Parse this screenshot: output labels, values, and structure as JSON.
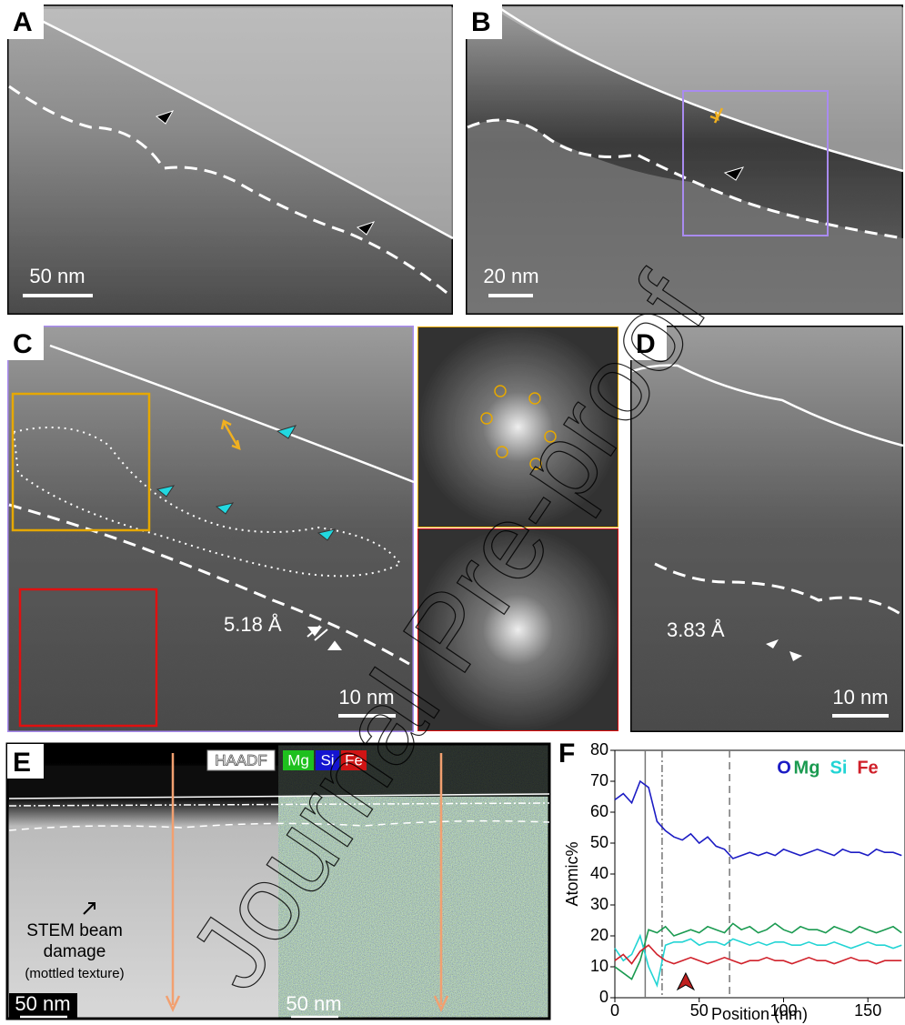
{
  "figure": {
    "labels": [
      "A",
      "B",
      "C",
      "D",
      "E",
      "F"
    ],
    "scale_bars": [
      "50 nm",
      "20 nm",
      "10 nm",
      "10 nm",
      "50 nm",
      "50 nm"
    ],
    "d_spacings": [
      "5.18 Å",
      "3.83 Å"
    ],
    "eds_channels": [
      "HAADF",
      "Mg",
      "Si",
      "Fe"
    ],
    "annotation": [
      "STEM beam",
      "damage",
      "(mottled texture)"
    ],
    "watermark": "Journal Pre-proof"
  },
  "chart_data": {
    "type": "line",
    "xlabel": "Position (nm)",
    "ylabel": "Atomic%",
    "x": [
      0,
      5,
      10,
      15,
      20,
      25,
      30,
      35,
      40,
      45,
      50,
      55,
      60,
      65,
      70,
      75,
      80,
      85,
      90,
      95,
      100,
      105,
      110,
      115,
      120,
      125,
      130,
      135,
      140,
      145,
      150,
      155,
      160,
      165,
      170
    ],
    "series": [
      {
        "name": "O",
        "color": "#1c1cc4",
        "values": [
          64,
          66,
          63,
          70,
          68,
          57,
          54,
          52,
          51,
          53,
          50,
          52,
          49,
          48,
          45,
          46,
          47,
          46,
          47,
          46,
          48,
          47,
          46,
          47,
          48,
          47,
          46,
          48,
          47,
          47,
          46,
          48,
          47,
          47,
          46
        ]
      },
      {
        "name": "Mg",
        "color": "#1a9a50",
        "values": [
          10,
          8,
          6,
          12,
          22,
          21,
          23,
          20,
          21,
          22,
          21,
          23,
          22,
          21,
          24,
          22,
          23,
          21,
          22,
          24,
          22,
          21,
          23,
          22,
          22,
          21,
          23,
          22,
          21,
          23,
          22,
          21,
          22,
          23,
          21
        ]
      },
      {
        "name": "Si",
        "color": "#22d4d4",
        "values": [
          16,
          12,
          14,
          20,
          10,
          4,
          17,
          18,
          18,
          19,
          17,
          18,
          18,
          17,
          19,
          18,
          17,
          18,
          17,
          18,
          18,
          17,
          17,
          18,
          17,
          17,
          18,
          17,
          16,
          17,
          18,
          17,
          17,
          16,
          17
        ]
      },
      {
        "name": "Fe",
        "color": "#d0202a",
        "values": [
          12,
          14,
          11,
          15,
          17,
          14,
          12,
          11,
          12,
          13,
          12,
          11,
          12,
          13,
          12,
          11,
          12,
          12,
          13,
          12,
          12,
          11,
          12,
          13,
          12,
          12,
          11,
          12,
          13,
          12,
          12,
          11,
          12,
          12,
          12
        ]
      }
    ],
    "xlim": [
      0,
      172
    ],
    "ylim": [
      0,
      80
    ],
    "xticks": [
      0,
      50,
      100,
      150
    ],
    "yticks": [
      0,
      10,
      20,
      30,
      40,
      50,
      60,
      70,
      80
    ],
    "vlines": [
      {
        "x": 18,
        "style": "solid"
      },
      {
        "x": 28,
        "style": "dashdot"
      },
      {
        "x": 68,
        "style": "dashed"
      }
    ],
    "marker": {
      "x": 42,
      "y": 5,
      "color": "#c0201f"
    }
  }
}
